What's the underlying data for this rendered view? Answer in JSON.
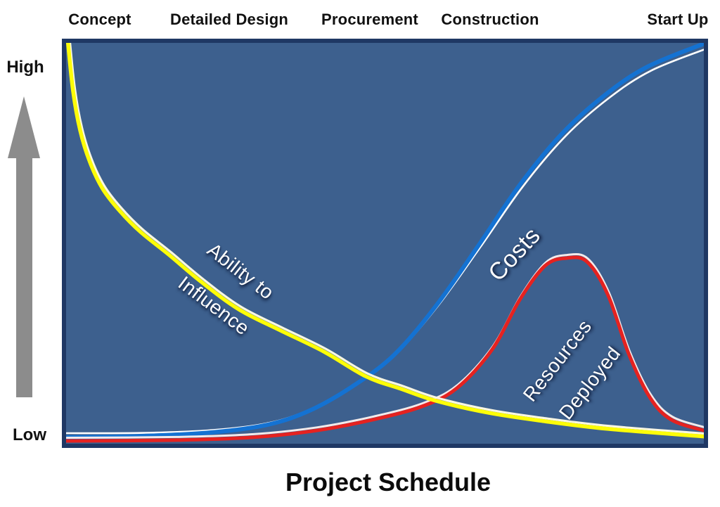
{
  "title": "Project Schedule",
  "y_axis": {
    "high_label": "High",
    "low_label": "Low"
  },
  "phases": [
    {
      "label": "Concept"
    },
    {
      "label": "Detailed Design"
    },
    {
      "label": "Procurement"
    },
    {
      "label": "Construction"
    },
    {
      "label": "Start Up"
    }
  ],
  "curve_labels": {
    "ability_line1": "Ability to",
    "ability_line2": "Influence",
    "costs": "Costs",
    "resources_line1": "Resources",
    "resources_line2": "Deployed"
  },
  "colors": {
    "plot_background": "#3d608e",
    "plot_border": "#1f3864",
    "influence_curve": "#fdfd08",
    "costs_curve": "#1472d2",
    "resources_curve": "#e52220",
    "highlight": "#ffffff",
    "arrow": "#8c8c8c",
    "text_dark": "#111111",
    "text_light": "#ffffff"
  },
  "chart_data": {
    "type": "line",
    "title": "Project Schedule",
    "xlabel": "Project Schedule",
    "ylabel": "Low to High",
    "x_axis_phases": [
      "Concept",
      "Detailed Design",
      "Procurement",
      "Construction",
      "Start Up"
    ],
    "y_range_labels": [
      "Low",
      "High"
    ],
    "x_range_pct": [
      0,
      100
    ],
    "y_range_pct": [
      0,
      100
    ],
    "grid": false,
    "legend": "labels drawn along curves",
    "series": [
      {
        "name": "Costs",
        "key": "costs",
        "color": "#1472d2",
        "shape": "s-curve increasing",
        "points": [
          [
            0,
            1.6
          ],
          [
            11.7,
            1.9
          ],
          [
            22.7,
            2.8
          ],
          [
            31.5,
            4.7
          ],
          [
            38.1,
            8.2
          ],
          [
            44.8,
            14.2
          ],
          [
            51.4,
            22.1
          ],
          [
            58.0,
            34.4
          ],
          [
            64.6,
            49.3
          ],
          [
            71.2,
            64.7
          ],
          [
            77.8,
            77.4
          ],
          [
            84.5,
            87.0
          ],
          [
            91.1,
            94.0
          ],
          [
            100,
            99.8
          ]
        ]
      },
      {
        "name": "Resources Deployed",
        "key": "resources-deployed",
        "color": "#e52220",
        "shape": "bell peaking in construction",
        "points": [
          [
            0,
            0.7
          ],
          [
            17.2,
            0.9
          ],
          [
            29.3,
            1.6
          ],
          [
            39.3,
            3.3
          ],
          [
            48.1,
            6.0
          ],
          [
            55.8,
            9.3
          ],
          [
            61.3,
            13.9
          ],
          [
            66.8,
            23.5
          ],
          [
            71.2,
            36.1
          ],
          [
            75.1,
            44.4
          ],
          [
            78.4,
            46.3
          ],
          [
            81.7,
            45.4
          ],
          [
            85.0,
            37.0
          ],
          [
            88.3,
            22.1
          ],
          [
            91.6,
            11.4
          ],
          [
            94.9,
            6.0
          ],
          [
            100,
            3.3
          ]
        ]
      },
      {
        "name": "Ability to Influence",
        "key": "ability-to-influence",
        "color": "#fdfd08",
        "shape": "exponential decay",
        "points": [
          [
            0.3,
            100
          ],
          [
            1.1,
            87.9
          ],
          [
            2.2,
            78.2
          ],
          [
            3.7,
            70.4
          ],
          [
            5.7,
            63.7
          ],
          [
            8.4,
            58.1
          ],
          [
            11.7,
            52.8
          ],
          [
            16.1,
            47.2
          ],
          [
            21.1,
            40.5
          ],
          [
            27.1,
            33.5
          ],
          [
            33.7,
            28.2
          ],
          [
            40.4,
            23.0
          ],
          [
            47.0,
            16.8
          ],
          [
            52.5,
            13.7
          ],
          [
            58.0,
            10.7
          ],
          [
            66.3,
            7.7
          ],
          [
            75.1,
            5.6
          ],
          [
            85.0,
            3.7
          ],
          [
            100,
            1.8
          ]
        ]
      }
    ]
  }
}
